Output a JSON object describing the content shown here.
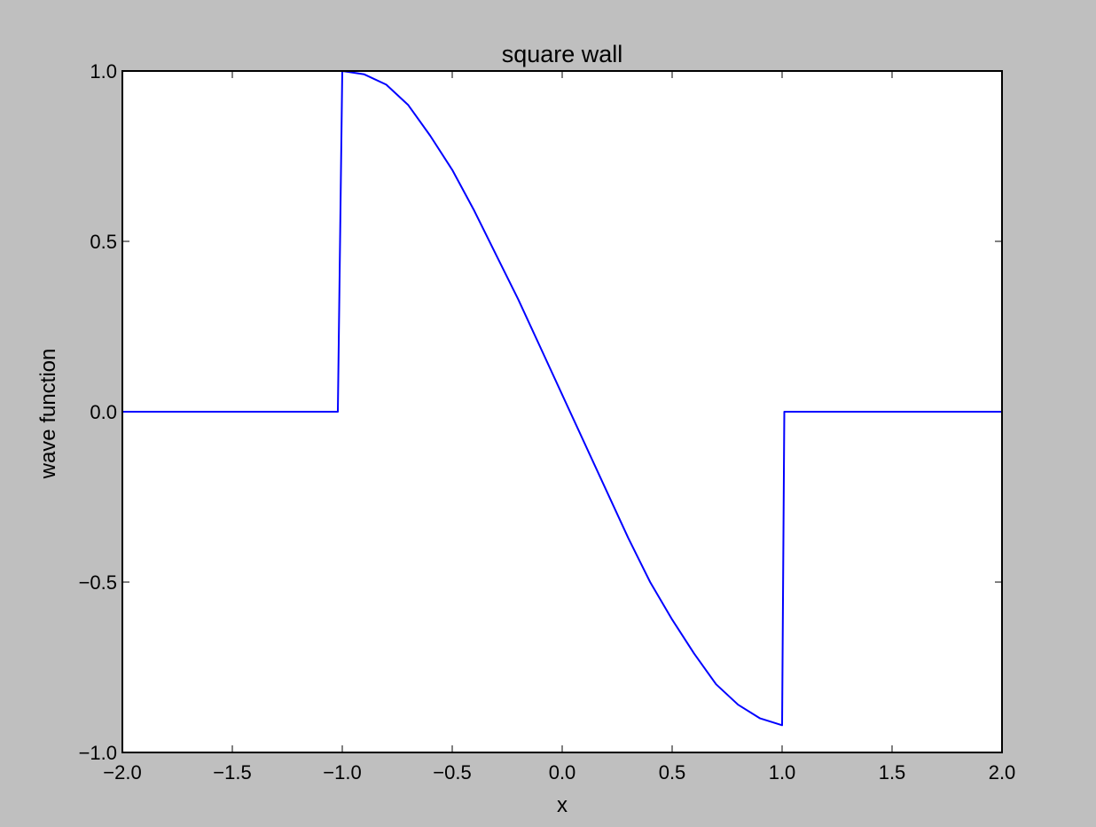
{
  "chart_data": {
    "type": "line",
    "title": "square wall",
    "xlabel": "x",
    "ylabel": "wave function",
    "xlim": [
      -2.0,
      2.0
    ],
    "ylim": [
      -1.0,
      1.0
    ],
    "xticks": [
      -2.0,
      -1.5,
      -1.0,
      -0.5,
      0.0,
      0.5,
      1.0,
      1.5,
      2.0
    ],
    "xtick_labels": [
      "−2.0",
      "−1.5",
      "−1.0",
      "−0.5",
      "0.0",
      "0.5",
      "1.0",
      "1.5",
      "2.0"
    ],
    "yticks": [
      1.0,
      0.5,
      0.0,
      -0.5,
      -1.0
    ],
    "ytick_labels": [
      "1.0",
      "0.5",
      "0.0",
      "−0.5",
      "−1.0"
    ],
    "grid": false,
    "series": [
      {
        "color": "#0000ff",
        "x": [
          -2.0,
          -1.5,
          -1.02,
          -1.0,
          -0.9,
          -0.8,
          -0.7,
          -0.6,
          -0.5,
          -0.4,
          -0.3,
          -0.2,
          -0.1,
          0.0,
          0.1,
          0.2,
          0.3,
          0.4,
          0.5,
          0.6,
          0.7,
          0.8,
          0.9,
          1.0,
          1.01,
          1.5,
          2.0
        ],
        "y": [
          0.0,
          0.0,
          0.0,
          1.0,
          0.99,
          0.96,
          0.9,
          0.81,
          0.71,
          0.59,
          0.46,
          0.33,
          0.19,
          0.05,
          -0.09,
          -0.23,
          -0.37,
          -0.5,
          -0.61,
          -0.71,
          -0.8,
          -0.86,
          -0.9,
          -0.92,
          0.0,
          0.0,
          0.0
        ]
      }
    ]
  }
}
